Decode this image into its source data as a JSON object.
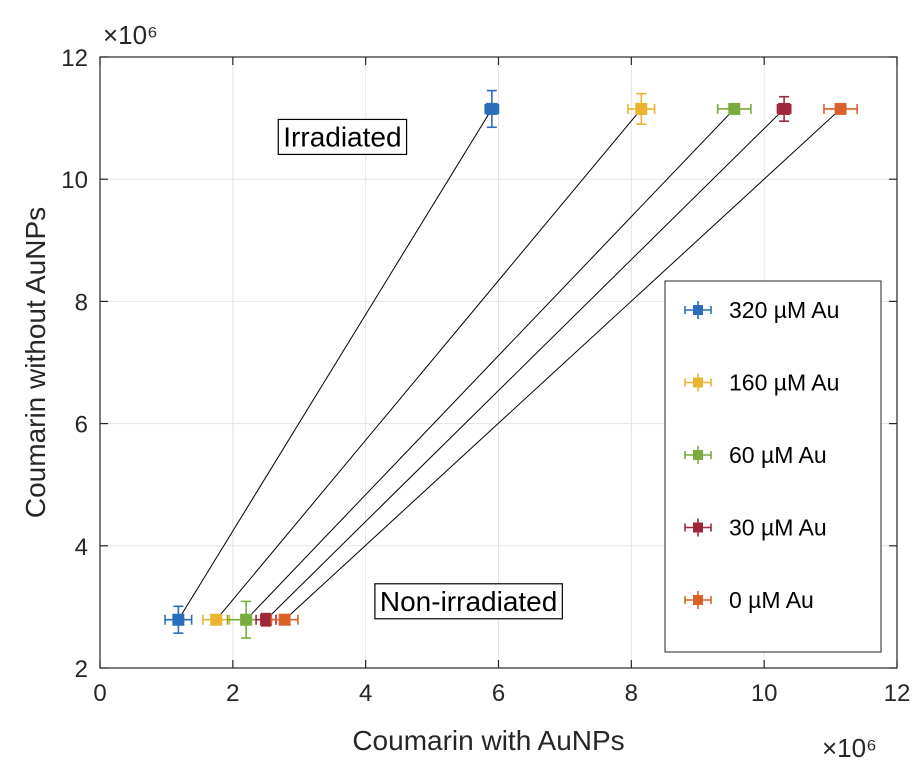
{
  "chart_data": {
    "type": "scatter",
    "xlabel": "Coumarin with AuNPs",
    "ylabel": "Coumarin without AuNPs",
    "x_multiplier": "×10⁶",
    "y_multiplier": "×10⁶",
    "xlim": [
      0,
      12
    ],
    "ylim": [
      2,
      12
    ],
    "xticks": [
      "0",
      "2",
      "4",
      "6",
      "8",
      "10",
      "12"
    ],
    "yticks": [
      "2",
      "4",
      "6",
      "8",
      "10",
      "12"
    ],
    "grid": true,
    "legend_position": "right",
    "annotations": [
      {
        "text": "Irradiated",
        "x": 3.65,
        "y": 10.7
      },
      {
        "text": "Non-irradiated",
        "x": 5.55,
        "y": 3.1
      }
    ],
    "series": [
      {
        "name": "320 µM Au",
        "color": "#2a6ebb",
        "points": [
          {
            "x": 1.18,
            "y": 2.79,
            "xerr": 0.2,
            "yerr": 0.22
          },
          {
            "x": 5.9,
            "y": 11.15,
            "xerr": 0.1,
            "yerr": 0.3
          }
        ]
      },
      {
        "name": "160 µM Au",
        "color": "#e9b530",
        "points": [
          {
            "x": 1.75,
            "y": 2.79,
            "xerr": 0.2,
            "yerr": 0.06
          },
          {
            "x": 8.15,
            "y": 11.15,
            "xerr": 0.2,
            "yerr": 0.25
          }
        ]
      },
      {
        "name": "60 µM Au",
        "color": "#79ac3c",
        "points": [
          {
            "x": 2.2,
            "y": 2.79,
            "xerr": 0.28,
            "yerr": 0.3
          },
          {
            "x": 9.55,
            "y": 11.15,
            "xerr": 0.25,
            "yerr": 0.05
          }
        ]
      },
      {
        "name": "30 µM Au",
        "color": "#a0263a",
        "points": [
          {
            "x": 2.5,
            "y": 2.79,
            "xerr": 0.15,
            "yerr": 0.1
          },
          {
            "x": 10.3,
            "y": 11.15,
            "xerr": 0.1,
            "yerr": 0.2
          }
        ]
      },
      {
        "name": "0 µM Au",
        "color": "#d9622b",
        "points": [
          {
            "x": 2.78,
            "y": 2.79,
            "xerr": 0.2,
            "yerr": 0.08
          },
          {
            "x": 11.15,
            "y": 11.15,
            "xerr": 0.25,
            "yerr": 0.05
          }
        ]
      }
    ]
  }
}
